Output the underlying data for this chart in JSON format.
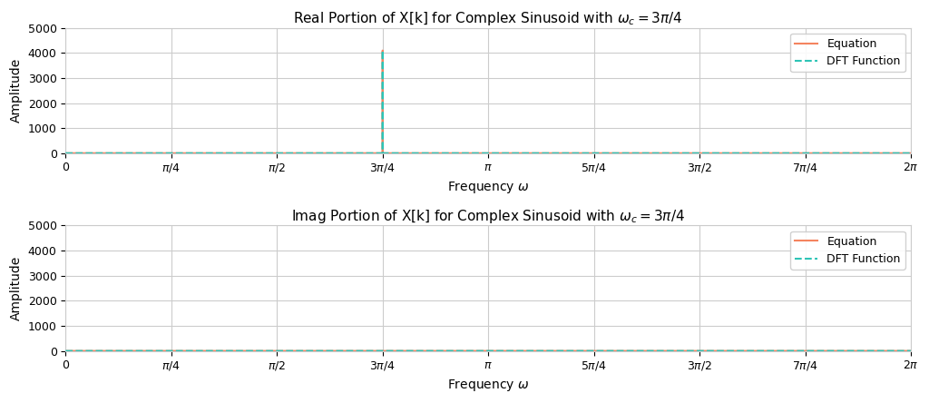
{
  "N": 4096,
  "omega_c_factor": 0.75,
  "title_real": "Real Portion of X[k] for Complex Sinusoid with $\\omega_c = 3\\pi/4$",
  "title_imag": "Imag Portion of X[k] for Complex Sinusoid with $\\omega_c = 3\\pi/4$",
  "xlabel": "Frequency $\\omega$",
  "ylabel": "Amplitude",
  "ylim": [
    0,
    5000
  ],
  "xlim": [
    0,
    6.283185307179586
  ],
  "yticks": [
    0,
    1000,
    2000,
    3000,
    4000,
    5000
  ],
  "color_equation": "#F4845F",
  "color_dft": "#2EC4B6",
  "legend_equation": "Equation",
  "legend_dft": "DFT Function",
  "background_color": "#ffffff",
  "grid_color": "#cccccc",
  "figsize": [
    10.24,
    4.44
  ],
  "dpi": 100,
  "spike_value": 4096
}
